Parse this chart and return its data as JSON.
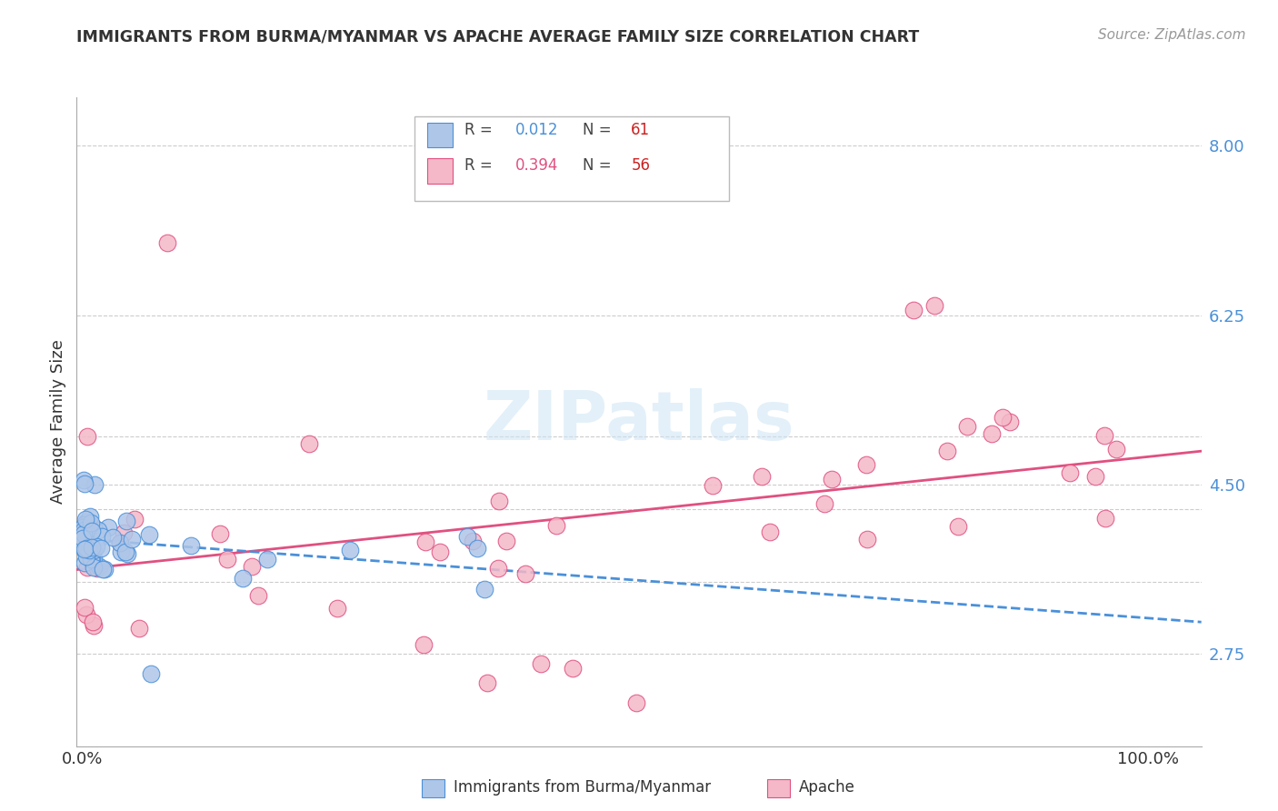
{
  "title": "IMMIGRANTS FROM BURMA/MYANMAR VS APACHE AVERAGE FAMILY SIZE CORRELATION CHART",
  "source": "Source: ZipAtlas.com",
  "ylabel": "Average Family Size",
  "ymin": 1.8,
  "ymax": 8.5,
  "xmin": -0.005,
  "xmax": 1.05,
  "legend1_R": "0.012",
  "legend1_N": "61",
  "legend2_R": "0.394",
  "legend2_N": "56",
  "blue_color": "#aec6e8",
  "pink_color": "#f4b8c8",
  "blue_line_color": "#4a90d9",
  "pink_line_color": "#e05080",
  "blue_N_color": "#cc2222",
  "pink_N_color": "#cc2222",
  "grid_y_values": [
    2.75,
    3.5,
    4.25,
    4.5,
    5.0,
    6.25,
    8.0
  ],
  "right_yticks": [
    2.75,
    4.5,
    6.25,
    8.0
  ],
  "right_ytick_labels": [
    "2.75",
    "4.50",
    "6.25",
    "8.00"
  ]
}
